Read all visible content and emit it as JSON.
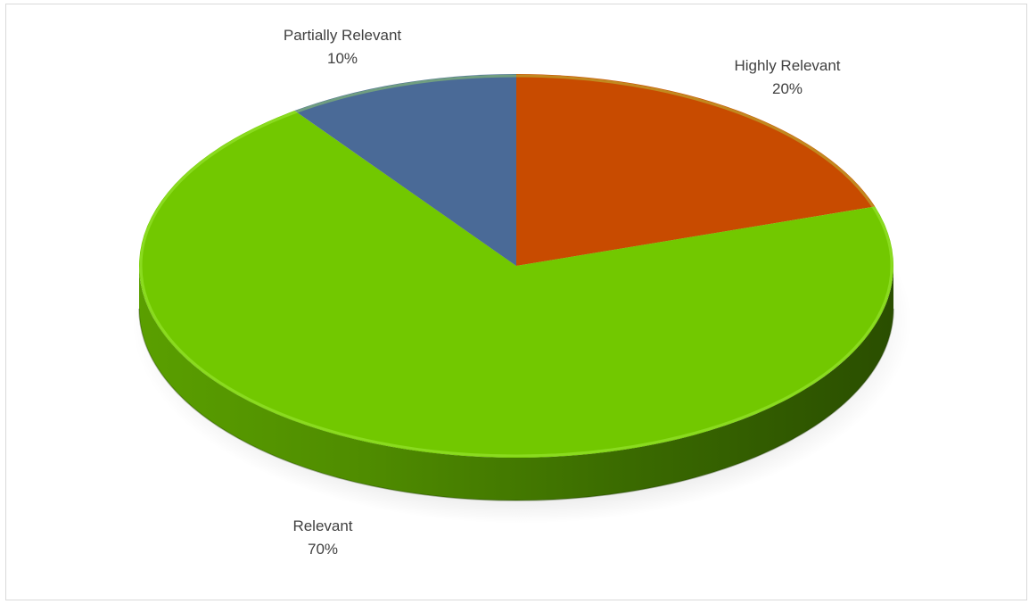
{
  "chart_data": {
    "type": "pie",
    "style": "3d",
    "start_angle_deg": 0,
    "direction": "clockwise",
    "slices": [
      {
        "label": "Highly Relevant",
        "value": 20,
        "value_label": "20%",
        "color": "#C84B00"
      },
      {
        "label": "Relevant",
        "value": 70,
        "value_label": "70%",
        "color": "#72C800"
      },
      {
        "label": "Partially Relevant",
        "value": 10,
        "value_label": "10%",
        "color": "#4A6A97"
      }
    ],
    "legend": "none"
  }
}
